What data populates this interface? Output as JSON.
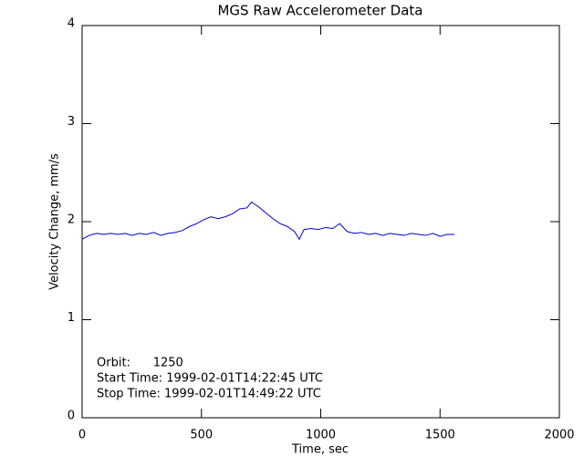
{
  "chart_data": {
    "type": "line",
    "title": "MGS Raw Accelerometer Data",
    "x_label": "Time, sec",
    "y_label": "Velocity Change, mm/s",
    "annotations": [
      "Orbit:      1250",
      "Start Time: 1999-02-01T14:22:45 UTC",
      "Stop Time: 1999-02-01T14:49:22 UTC"
    ],
    "xlim": [
      0,
      2000
    ],
    "xticks": [
      0,
      500,
      1000,
      1500,
      2000
    ],
    "ylim": [
      0,
      4
    ],
    "yticks": [
      0,
      1,
      2,
      3,
      4
    ],
    "series": [
      {
        "color": "#0000cc",
        "x": [
          0,
          30,
          60,
          90,
          120,
          150,
          180,
          210,
          240,
          270,
          300,
          330,
          360,
          390,
          420,
          450,
          480,
          510,
          540,
          570,
          600,
          630,
          660,
          690,
          710,
          740,
          770,
          800,
          830,
          860,
          890,
          910,
          930,
          960,
          990,
          1020,
          1050,
          1080,
          1110,
          1140,
          1170,
          1200,
          1230,
          1260,
          1290,
          1320,
          1350,
          1380,
          1410,
          1440,
          1470,
          1500,
          1530,
          1560
        ],
        "values": [
          1.82,
          1.86,
          1.88,
          1.87,
          1.88,
          1.87,
          1.88,
          1.86,
          1.88,
          1.87,
          1.89,
          1.86,
          1.88,
          1.89,
          1.91,
          1.95,
          1.98,
          2.02,
          2.05,
          2.03,
          2.05,
          2.08,
          2.13,
          2.14,
          2.2,
          2.15,
          2.09,
          2.03,
          1.98,
          1.95,
          1.9,
          1.82,
          1.92,
          1.93,
          1.92,
          1.94,
          1.93,
          1.98,
          1.9,
          1.88,
          1.89,
          1.87,
          1.88,
          1.86,
          1.88,
          1.87,
          1.86,
          1.88,
          1.87,
          1.86,
          1.88,
          1.85,
          1.87,
          1.87
        ]
      }
    ]
  }
}
